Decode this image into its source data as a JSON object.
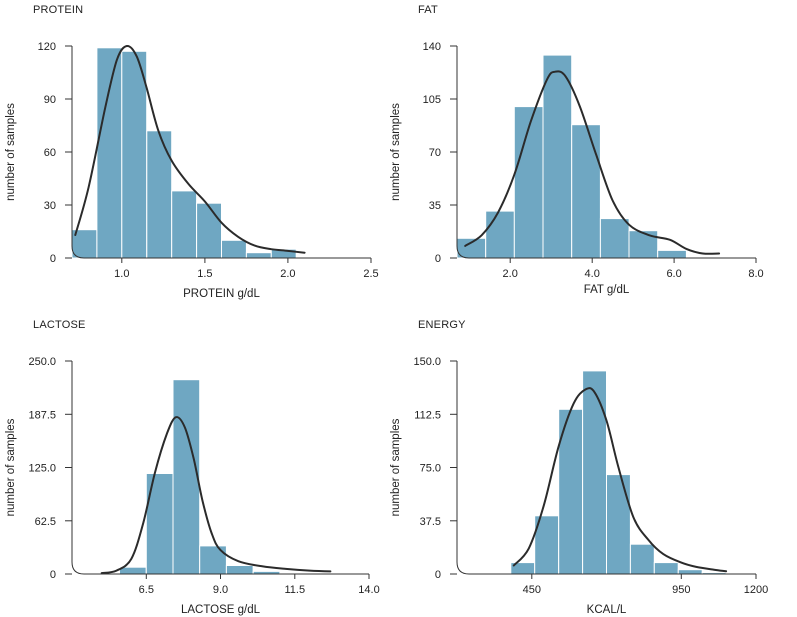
{
  "chart_data": [
    {
      "type": "bar",
      "title": "PROTEIN",
      "xlabel": "PROTEIN g/dL",
      "ylabel": "number of samples",
      "xlim": [
        0.7,
        2.5
      ],
      "ylim": [
        0,
        120
      ],
      "xticks": [
        "1.0",
        "1.5",
        "2.0",
        "2.5"
      ],
      "yticks": [
        "0",
        "30",
        "60",
        "90",
        "120"
      ],
      "bins": [
        [
          0.7,
          0.85
        ],
        [
          0.85,
          1.0
        ],
        [
          1.0,
          1.15
        ],
        [
          1.15,
          1.3
        ],
        [
          1.3,
          1.45
        ],
        [
          1.45,
          1.6
        ],
        [
          1.6,
          1.75
        ],
        [
          1.75,
          1.9
        ],
        [
          1.9,
          2.05
        ]
      ],
      "values": [
        16,
        119,
        117,
        72,
        38,
        31,
        10,
        3,
        5
      ],
      "kde": [
        [
          0.72,
          13
        ],
        [
          0.8,
          40
        ],
        [
          0.9,
          85
        ],
        [
          0.97,
          112
        ],
        [
          1.03,
          120
        ],
        [
          1.09,
          114
        ],
        [
          1.15,
          96
        ],
        [
          1.22,
          72
        ],
        [
          1.3,
          55
        ],
        [
          1.4,
          42
        ],
        [
          1.5,
          32
        ],
        [
          1.6,
          20
        ],
        [
          1.7,
          12
        ],
        [
          1.8,
          7
        ],
        [
          1.9,
          5
        ],
        [
          2.0,
          4
        ],
        [
          2.1,
          3
        ]
      ],
      "color": "#6fa7c2"
    },
    {
      "type": "bar",
      "title": "FAT",
      "xlabel": "FAT g/dL",
      "ylabel": "number of samples",
      "xlim": [
        0.7,
        8.0
      ],
      "ylim": [
        0,
        140
      ],
      "xticks": [
        "2.0",
        "4.0",
        "6.0",
        "8.0"
      ],
      "yticks": [
        "0",
        "35",
        "70",
        "105",
        "140"
      ],
      "bins": [
        [
          0.7,
          1.4
        ],
        [
          1.4,
          2.1
        ],
        [
          2.1,
          2.8
        ],
        [
          2.8,
          3.5
        ],
        [
          3.5,
          4.2
        ],
        [
          4.2,
          4.9
        ],
        [
          4.9,
          5.6
        ],
        [
          5.6,
          6.3
        ]
      ],
      "values": [
        13,
        31,
        100,
        134,
        88,
        26,
        18,
        5
      ],
      "kde": [
        [
          0.9,
          8
        ],
        [
          1.3,
          15
        ],
        [
          1.7,
          30
        ],
        [
          2.1,
          55
        ],
        [
          2.5,
          90
        ],
        [
          2.9,
          118
        ],
        [
          3.1,
          123
        ],
        [
          3.35,
          120
        ],
        [
          3.7,
          100
        ],
        [
          4.1,
          68
        ],
        [
          4.5,
          38
        ],
        [
          4.9,
          22
        ],
        [
          5.4,
          15
        ],
        [
          5.9,
          12
        ],
        [
          6.3,
          6
        ],
        [
          6.7,
          3
        ],
        [
          7.1,
          3
        ]
      ],
      "color": "#6fa7c2"
    },
    {
      "type": "bar",
      "title": "LACTOSE",
      "xlabel": "LACTOSE g/dL",
      "ylabel": "number of samples",
      "xlim": [
        4.0,
        14.0
      ],
      "ylim": [
        0,
        250
      ],
      "xticks": [
        "6.5",
        "9.0",
        "11.5",
        "14.0"
      ],
      "yticks": [
        "0",
        "62.5",
        "125.0",
        "187.5",
        "250.0"
      ],
      "bins": [
        [
          5.6,
          6.5
        ],
        [
          6.5,
          7.4
        ],
        [
          7.4,
          8.3
        ],
        [
          8.3,
          9.2
        ],
        [
          9.2,
          10.1
        ],
        [
          10.1,
          11.0
        ],
        [
          11.0,
          11.9
        ]
      ],
      "values": [
        8,
        118,
        228,
        33,
        10,
        3,
        1
      ],
      "kde": [
        [
          5.0,
          1
        ],
        [
          5.5,
          4
        ],
        [
          6.0,
          18
        ],
        [
          6.4,
          60
        ],
        [
          6.8,
          120
        ],
        [
          7.2,
          165
        ],
        [
          7.5,
          184
        ],
        [
          7.8,
          172
        ],
        [
          8.1,
          135
        ],
        [
          8.4,
          85
        ],
        [
          8.7,
          48
        ],
        [
          9.0,
          28
        ],
        [
          9.6,
          15
        ],
        [
          10.4,
          9
        ],
        [
          11.2,
          6
        ],
        [
          12.0,
          4
        ],
        [
          12.7,
          3
        ]
      ],
      "color": "#6fa7c2"
    },
    {
      "type": "bar",
      "title": "ENERGY",
      "xlabel": "KCAL/L",
      "ylabel": "number of samples",
      "xlim": [
        200,
        1200
      ],
      "ylim": [
        0,
        150
      ],
      "xticks": [
        "450",
        "950",
        "1200"
      ],
      "yticks": [
        "0",
        "37.5",
        "75.0",
        "112.5",
        "150.0"
      ],
      "bins": [
        [
          380,
          460
        ],
        [
          460,
          540
        ],
        [
          540,
          620
        ],
        [
          620,
          700
        ],
        [
          700,
          780
        ],
        [
          780,
          860
        ],
        [
          860,
          940
        ],
        [
          940,
          1020
        ],
        [
          1020,
          1100
        ]
      ],
      "values": [
        8,
        41,
        116,
        143,
        70,
        21,
        8,
        3,
        1
      ],
      "kde": [
        [
          390,
          6
        ],
        [
          440,
          18
        ],
        [
          490,
          48
        ],
        [
          540,
          90
        ],
        [
          590,
          120
        ],
        [
          630,
          130
        ],
        [
          660,
          128
        ],
        [
          700,
          108
        ],
        [
          740,
          75
        ],
        [
          790,
          40
        ],
        [
          840,
          24
        ],
        [
          890,
          14
        ],
        [
          950,
          8
        ],
        [
          1000,
          5
        ],
        [
          1060,
          3
        ],
        [
          1100,
          2
        ]
      ],
      "color": "#6fa7c2"
    }
  ]
}
